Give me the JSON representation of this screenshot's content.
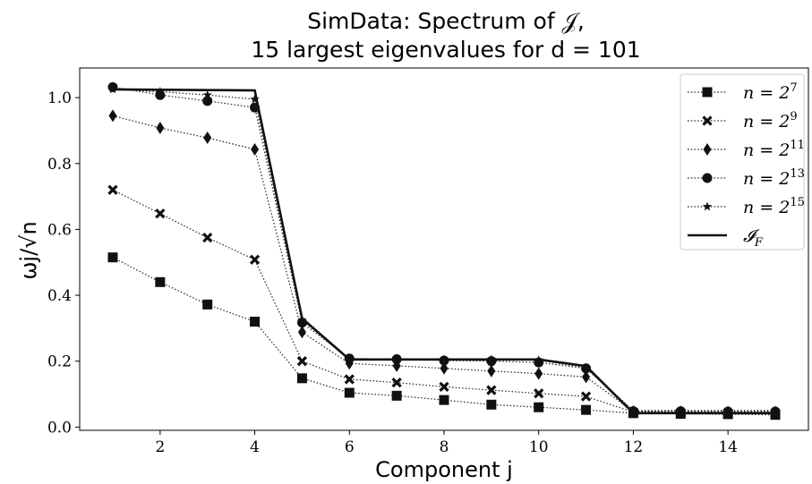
{
  "chart_data": {
    "type": "line",
    "title_line1": "SimData: Spectrum of 𝒥,",
    "title_line2": "15 largest eigenvalues for d = 101",
    "xlabel": "Component j",
    "ylabel": "ωj/√n",
    "xlim": [
      0.3,
      15.7
    ],
    "ylim": [
      -0.01,
      1.09
    ],
    "xticks": [
      2,
      4,
      6,
      8,
      10,
      12,
      14
    ],
    "yticks": [
      0.0,
      0.2,
      0.4,
      0.6,
      0.8,
      1.0
    ],
    "ytick_labels": [
      "0.0",
      "0.2",
      "0.4",
      "0.6",
      "0.8",
      "1.0"
    ],
    "grid": false,
    "legend_position": "top-right",
    "x": [
      1,
      2,
      3,
      4,
      5,
      6,
      7,
      8,
      9,
      10,
      11,
      12,
      13,
      14,
      15
    ],
    "series": [
      {
        "name": "n = 2^7",
        "marker": "square",
        "style": "dotted",
        "values": [
          0.515,
          0.44,
          0.372,
          0.32,
          0.148,
          0.104,
          0.095,
          0.082,
          0.068,
          0.06,
          0.052,
          0.042,
          0.04,
          0.039,
          0.037
        ]
      },
      {
        "name": "n = 2^9",
        "marker": "x",
        "style": "dotted",
        "values": [
          0.72,
          0.648,
          0.575,
          0.508,
          0.2,
          0.145,
          0.135,
          0.122,
          0.112,
          0.102,
          0.093,
          0.045,
          0.044,
          0.043,
          0.042
        ]
      },
      {
        "name": "n = 2^11",
        "marker": "diamond",
        "style": "dotted",
        "values": [
          0.945,
          0.908,
          0.878,
          0.843,
          0.288,
          0.193,
          0.186,
          0.178,
          0.17,
          0.162,
          0.152,
          0.047,
          0.046,
          0.045,
          0.045
        ]
      },
      {
        "name": "n = 2^13",
        "marker": "circle",
        "style": "dotted",
        "values": [
          1.032,
          1.008,
          0.99,
          0.97,
          0.317,
          0.208,
          0.206,
          0.202,
          0.2,
          0.196,
          0.178,
          0.048,
          0.048,
          0.047,
          0.047
        ]
      },
      {
        "name": "n = 2^15",
        "marker": "star",
        "style": "dotted",
        "values": [
          1.025,
          1.018,
          1.008,
          0.995,
          0.325,
          0.205,
          0.205,
          0.205,
          0.205,
          0.203,
          0.18,
          0.05,
          0.05,
          0.05,
          0.05
        ]
      },
      {
        "name": "𝓘F",
        "marker": "none",
        "style": "solid",
        "values": [
          1.025,
          1.024,
          1.023,
          1.022,
          0.33,
          0.205,
          0.205,
          0.205,
          0.205,
          0.205,
          0.185,
          0.042,
          0.042,
          0.042,
          0.042
        ]
      }
    ]
  }
}
